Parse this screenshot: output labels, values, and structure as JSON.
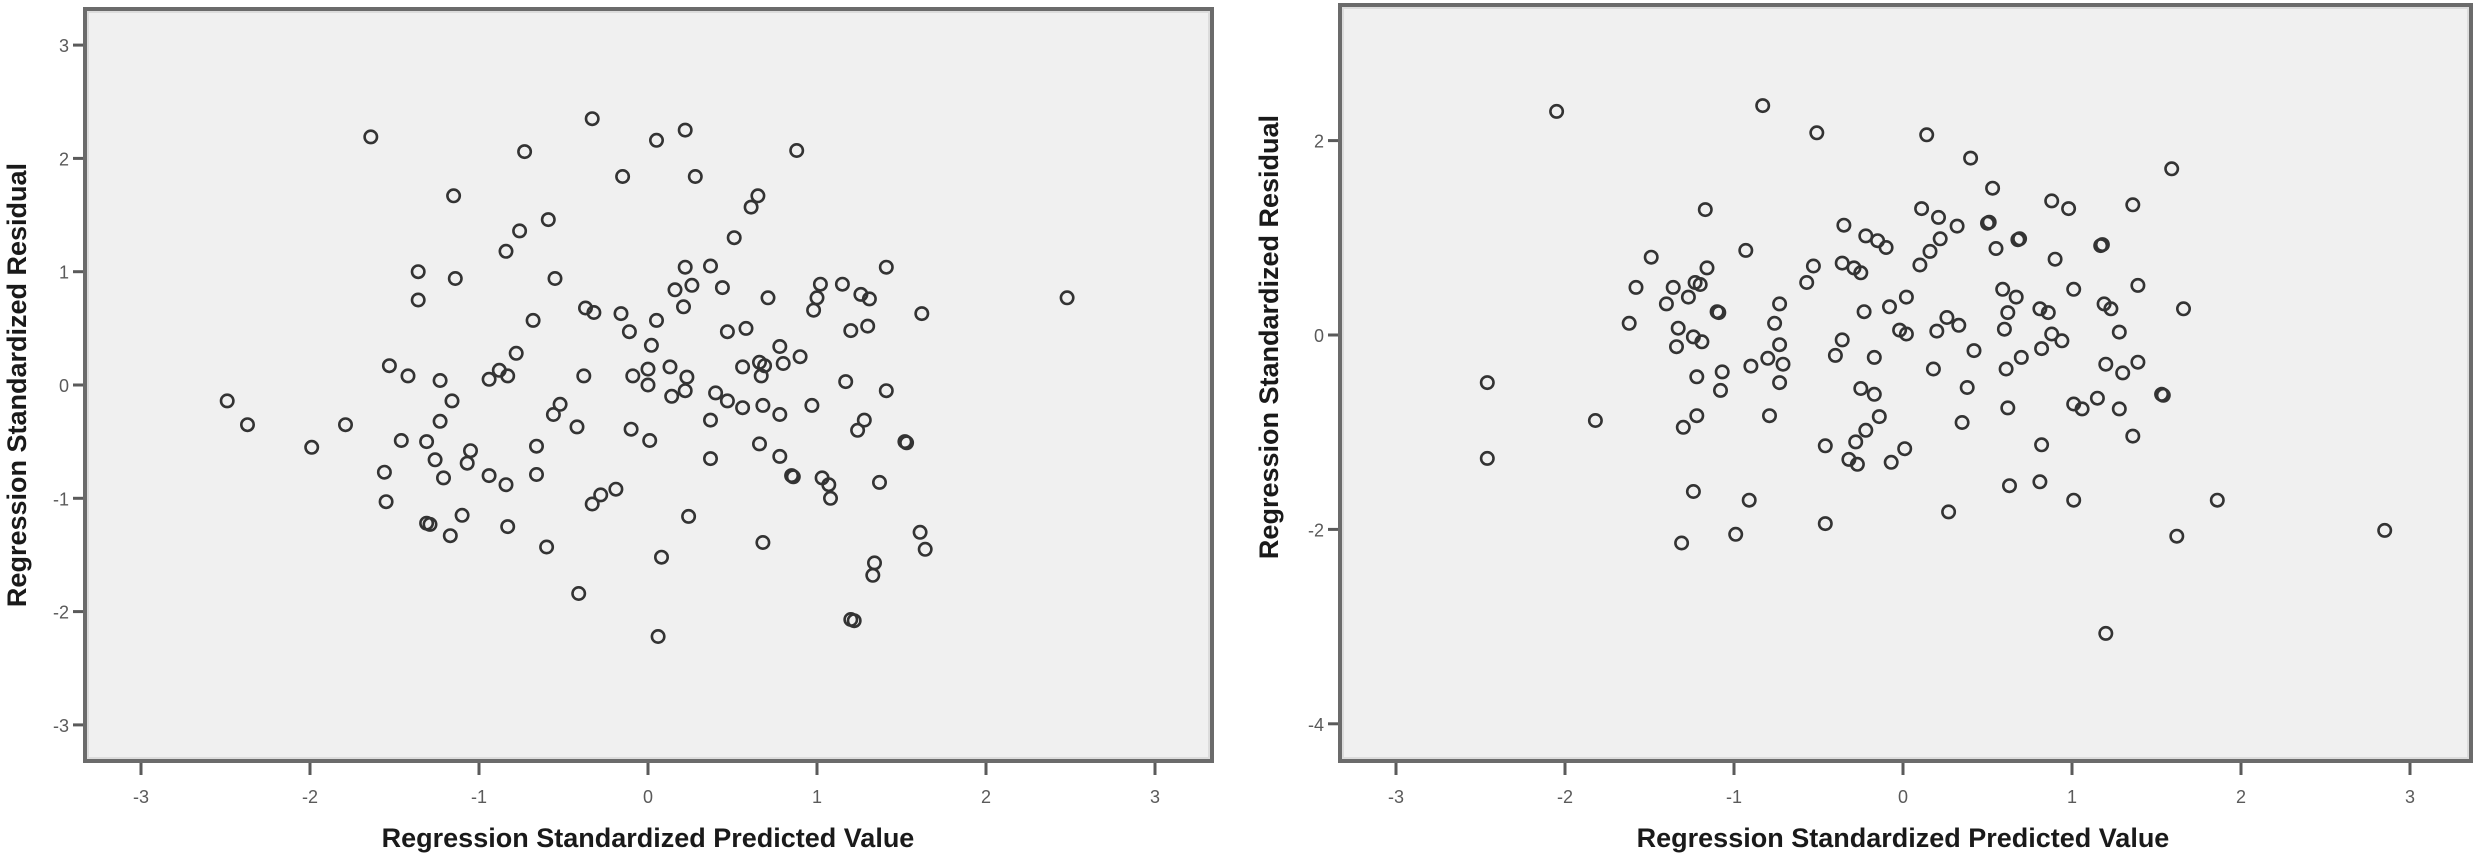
{
  "chart_data": [
    {
      "type": "scatter",
      "title": "",
      "xlabel": "Regression Standardized Predicted Value",
      "ylabel": "Regression Standardized Residual",
      "xlim": [
        -3.3,
        3.4
      ],
      "ylim": [
        -3.35,
        3.35
      ],
      "xticks": [
        -3,
        -2,
        -1,
        0,
        1,
        2,
        3
      ],
      "yticks": [
        3,
        2,
        1,
        0,
        -1,
        -2,
        -3
      ],
      "grid": false,
      "legend": null,
      "marker": "open-circle",
      "points": [
        [
          -2.49,
          -0.14
        ],
        [
          -2.37,
          -0.35
        ],
        [
          -1.99,
          -0.55
        ],
        [
          -1.79,
          -0.35
        ],
        [
          -1.64,
          2.19
        ],
        [
          -1.56,
          -0.77
        ],
        [
          -1.55,
          -1.03
        ],
        [
          -1.53,
          0.17
        ],
        [
          -1.46,
          -0.49
        ],
        [
          -1.42,
          0.08
        ],
        [
          -1.36,
          1.0
        ],
        [
          -1.36,
          0.75
        ],
        [
          -1.31,
          -0.5
        ],
        [
          -1.31,
          -1.22
        ],
        [
          -1.29,
          -1.23
        ],
        [
          -1.26,
          -0.66
        ],
        [
          -1.23,
          0.04
        ],
        [
          -1.23,
          -0.32
        ],
        [
          -1.21,
          -0.82
        ],
        [
          -1.17,
          -1.33
        ],
        [
          -1.16,
          -0.14
        ],
        [
          -1.15,
          1.67
        ],
        [
          -1.14,
          0.94
        ],
        [
          -1.1,
          -1.15
        ],
        [
          -1.07,
          -0.69
        ],
        [
          -1.05,
          -0.58
        ],
        [
          -0.94,
          0.05
        ],
        [
          -0.94,
          -0.8
        ],
        [
          -0.88,
          0.13
        ],
        [
          -0.84,
          1.18
        ],
        [
          -0.84,
          -0.88
        ],
        [
          -0.83,
          0.08
        ],
        [
          -0.83,
          -1.25
        ],
        [
          -0.78,
          0.28
        ],
        [
          -0.76,
          1.36
        ],
        [
          -0.73,
          2.06
        ],
        [
          -0.68,
          0.57
        ],
        [
          -0.66,
          -0.54
        ],
        [
          -0.66,
          -0.79
        ],
        [
          -0.6,
          -1.43
        ],
        [
          -0.59,
          1.46
        ],
        [
          -0.56,
          -0.26
        ],
        [
          -0.55,
          0.94
        ],
        [
          -0.52,
          -0.17
        ],
        [
          -0.42,
          -0.37
        ],
        [
          -0.41,
          -1.84
        ],
        [
          -0.38,
          0.08
        ],
        [
          -0.37,
          0.68
        ],
        [
          -0.33,
          2.35
        ],
        [
          -0.33,
          -1.05
        ],
        [
          -0.32,
          0.64
        ],
        [
          -0.28,
          -0.97
        ],
        [
          -0.19,
          -0.92
        ],
        [
          -0.16,
          0.63
        ],
        [
          -0.15,
          1.84
        ],
        [
          -0.11,
          0.47
        ],
        [
          -0.1,
          -0.39
        ],
        [
          -0.09,
          0.08
        ],
        [
          0.0,
          0.14
        ],
        [
          0.0,
          0.0
        ],
        [
          0.01,
          -0.49
        ],
        [
          0.02,
          0.35
        ],
        [
          0.05,
          2.16
        ],
        [
          0.05,
          0.57
        ],
        [
          0.06,
          -2.22
        ],
        [
          0.08,
          -1.52
        ],
        [
          0.13,
          0.16
        ],
        [
          0.14,
          -0.1
        ],
        [
          0.16,
          0.84
        ],
        [
          0.21,
          0.69
        ],
        [
          0.22,
          2.25
        ],
        [
          0.22,
          1.04
        ],
        [
          0.22,
          -0.05
        ],
        [
          0.23,
          0.07
        ],
        [
          0.24,
          -1.16
        ],
        [
          0.26,
          0.88
        ],
        [
          0.28,
          1.84
        ],
        [
          0.37,
          1.05
        ],
        [
          0.37,
          -0.31
        ],
        [
          0.37,
          -0.65
        ],
        [
          0.4,
          -0.07
        ],
        [
          0.44,
          0.86
        ],
        [
          0.47,
          0.47
        ],
        [
          0.47,
          -0.14
        ],
        [
          0.51,
          1.3
        ],
        [
          0.56,
          0.16
        ],
        [
          0.56,
          -0.2
        ],
        [
          0.58,
          0.5
        ],
        [
          0.61,
          1.57
        ],
        [
          0.65,
          1.67
        ],
        [
          0.66,
          -0.52
        ],
        [
          0.66,
          0.2
        ],
        [
          0.67,
          0.08
        ],
        [
          0.68,
          -0.18
        ],
        [
          0.68,
          -1.39
        ],
        [
          0.69,
          0.17
        ],
        [
          0.71,
          0.77
        ],
        [
          0.78,
          0.34
        ],
        [
          0.78,
          -0.26
        ],
        [
          0.78,
          -0.63
        ],
        [
          0.8,
          0.19
        ],
        [
          0.85,
          -0.8
        ],
        [
          0.86,
          -0.81
        ],
        [
          0.88,
          2.07
        ],
        [
          0.9,
          0.25
        ],
        [
          0.97,
          -0.18
        ],
        [
          0.98,
          0.66
        ],
        [
          1.0,
          0.77
        ],
        [
          1.02,
          0.89
        ],
        [
          1.03,
          -0.82
        ],
        [
          1.07,
          -0.88
        ],
        [
          1.08,
          -1.0
        ],
        [
          1.15,
          0.89
        ],
        [
          1.17,
          0.03
        ],
        [
          1.2,
          0.48
        ],
        [
          1.2,
          -2.07
        ],
        [
          1.22,
          -2.08
        ],
        [
          1.24,
          -0.4
        ],
        [
          1.26,
          0.8
        ],
        [
          1.28,
          -0.31
        ],
        [
          1.3,
          0.52
        ],
        [
          1.31,
          0.76
        ],
        [
          1.33,
          -1.68
        ],
        [
          1.34,
          -1.57
        ],
        [
          1.37,
          -0.86
        ],
        [
          1.41,
          -0.05
        ],
        [
          1.41,
          1.04
        ],
        [
          1.52,
          -0.5
        ],
        [
          1.53,
          -0.51
        ],
        [
          1.61,
          -1.3
        ],
        [
          1.62,
          0.63
        ],
        [
          1.64,
          -1.45
        ],
        [
          2.48,
          0.77
        ]
      ]
    },
    {
      "type": "scatter",
      "title": "",
      "xlabel": "Regression Standardized Predicted Value",
      "ylabel": "Regression Standardized Residual",
      "xlim": [
        -3.3,
        3.4
      ],
      "ylim": [
        -4.4,
        3.4
      ],
      "xticks": [
        -3,
        -2,
        -1,
        0,
        1,
        2,
        3
      ],
      "yticks": [
        2,
        0,
        -2,
        -4
      ],
      "grid": false,
      "legend": null,
      "marker": "open-circle",
      "points": [
        [
          -2.46,
          -0.49
        ],
        [
          -2.46,
          -1.27
        ],
        [
          -2.05,
          2.3
        ],
        [
          -1.82,
          -0.88
        ],
        [
          -1.62,
          0.12
        ],
        [
          -1.58,
          0.49
        ],
        [
          -1.49,
          0.8
        ],
        [
          -1.4,
          0.32
        ],
        [
          -1.36,
          0.49
        ],
        [
          -1.34,
          -0.12
        ],
        [
          -1.33,
          0.07
        ],
        [
          -1.31,
          -2.14
        ],
        [
          -1.3,
          -0.95
        ],
        [
          -1.27,
          0.39
        ],
        [
          -1.24,
          -0.02
        ],
        [
          -1.24,
          -1.61
        ],
        [
          -1.23,
          0.54
        ],
        [
          -1.22,
          -0.43
        ],
        [
          -1.22,
          -0.83
        ],
        [
          -1.2,
          0.52
        ],
        [
          -1.19,
          -0.07
        ],
        [
          -1.17,
          1.29
        ],
        [
          -1.16,
          0.69
        ],
        [
          -1.1,
          0.24
        ],
        [
          -1.09,
          0.23
        ],
        [
          -1.08,
          -0.57
        ],
        [
          -1.07,
          -0.38
        ],
        [
          -0.99,
          -2.05
        ],
        [
          -0.93,
          0.87
        ],
        [
          -0.91,
          -1.7
        ],
        [
          -0.9,
          -0.32
        ],
        [
          -0.83,
          2.36
        ],
        [
          -0.8,
          -0.24
        ],
        [
          -0.79,
          -0.83
        ],
        [
          -0.76,
          0.12
        ],
        [
          -0.73,
          0.32
        ],
        [
          -0.73,
          -0.49
        ],
        [
          -0.73,
          -0.1
        ],
        [
          -0.71,
          -0.3
        ],
        [
          -0.57,
          0.54
        ],
        [
          -0.53,
          0.71
        ],
        [
          -0.51,
          2.08
        ],
        [
          -0.46,
          -1.14
        ],
        [
          -0.46,
          -1.94
        ],
        [
          -0.4,
          -0.21
        ],
        [
          -0.36,
          -0.05
        ],
        [
          -0.36,
          0.74
        ],
        [
          -0.35,
          1.13
        ],
        [
          -0.32,
          -1.28
        ],
        [
          -0.29,
          0.69
        ],
        [
          -0.28,
          -1.1
        ],
        [
          -0.27,
          -1.33
        ],
        [
          -0.25,
          0.64
        ],
        [
          -0.25,
          -0.55
        ],
        [
          -0.23,
          0.24
        ],
        [
          -0.22,
          1.02
        ],
        [
          -0.22,
          -0.98
        ],
        [
          -0.17,
          -0.61
        ],
        [
          -0.17,
          -0.23
        ],
        [
          -0.15,
          0.97
        ],
        [
          -0.14,
          -0.84
        ],
        [
          -0.1,
          0.9
        ],
        [
          -0.08,
          0.29
        ],
        [
          -0.07,
          -1.31
        ],
        [
          -0.02,
          0.05
        ],
        [
          0.01,
          -1.17
        ],
        [
          0.02,
          0.01
        ],
        [
          0.02,
          0.39
        ],
        [
          0.1,
          0.72
        ],
        [
          0.11,
          1.3
        ],
        [
          0.14,
          2.06
        ],
        [
          0.16,
          0.86
        ],
        [
          0.18,
          -0.35
        ],
        [
          0.2,
          0.04
        ],
        [
          0.21,
          1.21
        ],
        [
          0.22,
          0.99
        ],
        [
          0.26,
          0.18
        ],
        [
          0.27,
          -1.82
        ],
        [
          0.32,
          1.12
        ],
        [
          0.33,
          0.1
        ],
        [
          0.35,
          -0.9
        ],
        [
          0.38,
          -0.54
        ],
        [
          0.4,
          1.82
        ],
        [
          0.42,
          -0.16
        ],
        [
          0.5,
          1.15
        ],
        [
          0.51,
          1.16
        ],
        [
          0.53,
          1.51
        ],
        [
          0.55,
          0.89
        ],
        [
          0.59,
          0.47
        ],
        [
          0.6,
          0.06
        ],
        [
          0.61,
          -0.35
        ],
        [
          0.62,
          0.23
        ],
        [
          0.62,
          -0.75
        ],
        [
          0.63,
          -1.55
        ],
        [
          0.67,
          0.39
        ],
        [
          0.68,
          0.98
        ],
        [
          0.69,
          0.99
        ],
        [
          0.7,
          -0.23
        ],
        [
          0.81,
          0.27
        ],
        [
          0.82,
          -0.14
        ],
        [
          0.82,
          -1.13
        ],
        [
          0.81,
          -1.51
        ],
        [
          0.86,
          0.23
        ],
        [
          0.88,
          1.38
        ],
        [
          0.88,
          0.01
        ],
        [
          0.9,
          0.78
        ],
        [
          0.94,
          -0.06
        ],
        [
          0.98,
          1.3
        ],
        [
          1.01,
          -1.7
        ],
        [
          1.01,
          0.47
        ],
        [
          1.01,
          -0.71
        ],
        [
          1.06,
          -0.76
        ],
        [
          1.15,
          -0.65
        ],
        [
          1.17,
          0.92
        ],
        [
          1.18,
          0.93
        ],
        [
          1.19,
          0.32
        ],
        [
          1.2,
          -0.3
        ],
        [
          1.2,
          -3.07
        ],
        [
          1.23,
          0.27
        ],
        [
          1.28,
          0.03
        ],
        [
          1.28,
          -0.76
        ],
        [
          1.3,
          -0.39
        ],
        [
          1.36,
          1.34
        ],
        [
          1.36,
          -1.04
        ],
        [
          1.39,
          0.51
        ],
        [
          1.39,
          -0.28
        ],
        [
          1.53,
          -0.61
        ],
        [
          1.54,
          -0.62
        ],
        [
          1.59,
          1.71
        ],
        [
          1.62,
          -2.07
        ],
        [
          1.66,
          0.27
        ],
        [
          1.86,
          -1.7
        ],
        [
          2.85,
          -2.01
        ]
      ]
    }
  ],
  "panels": [
    {
      "x_axis_title": "Regression Standardized Predicted Value",
      "y_axis_title": "Regression Standardized Residual",
      "colors": {
        "plot_background": "#f0f0f0",
        "frame": "#6b6b6b",
        "marker": "#333333",
        "tick_label": "#5a5a5a",
        "axis_title": "#1a1a1a"
      }
    },
    {
      "x_axis_title": "Regression Standardized Predicted Value",
      "y_axis_title": "Regression Standardized Residual",
      "colors": {
        "plot_background": "#f0f0f0",
        "frame": "#6b6b6b",
        "marker": "#333333",
        "tick_label": "#5a5a5a",
        "axis_title": "#1a1a1a"
      }
    }
  ]
}
